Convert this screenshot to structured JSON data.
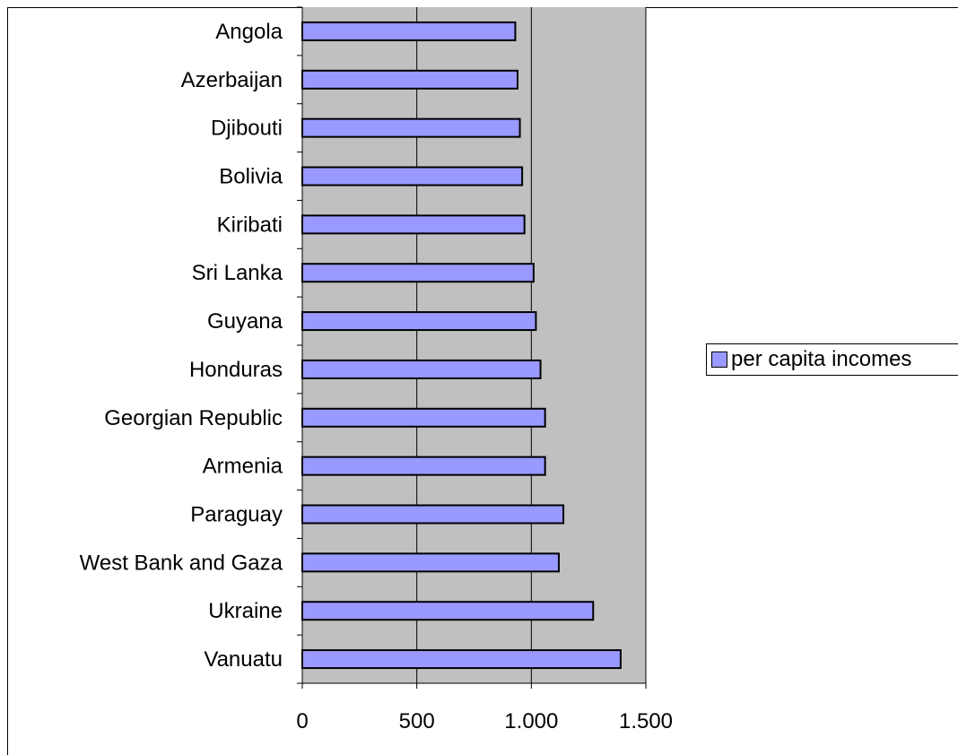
{
  "chart_data": {
    "type": "bar",
    "orientation": "horizontal",
    "categories": [
      "Angola",
      "Azerbaijan",
      "Djibouti",
      "Bolivia",
      "Kiribati",
      "Sri Lanka",
      "Guyana",
      "Honduras",
      "Georgian Republic",
      "Armenia",
      "Paraguay",
      "West Bank and Gaza",
      "Ukraine",
      "Vanuatu"
    ],
    "series": [
      {
        "name": "per capita incomes",
        "values": [
          930,
          940,
          950,
          960,
          970,
          1010,
          1020,
          1040,
          1060,
          1060,
          1140,
          1120,
          1270,
          1390
        ]
      }
    ],
    "xlim": [
      0,
      1500
    ],
    "xticks": [
      "0",
      "500",
      "1.000",
      "1.500"
    ],
    "xtick_values": [
      0,
      500,
      1000,
      1500
    ],
    "grid": true,
    "legend_position": "right",
    "colors": {
      "bar_fill": "#9999ff",
      "plot_background": "#c0c0c0",
      "bar_stroke": "#000000"
    }
  }
}
